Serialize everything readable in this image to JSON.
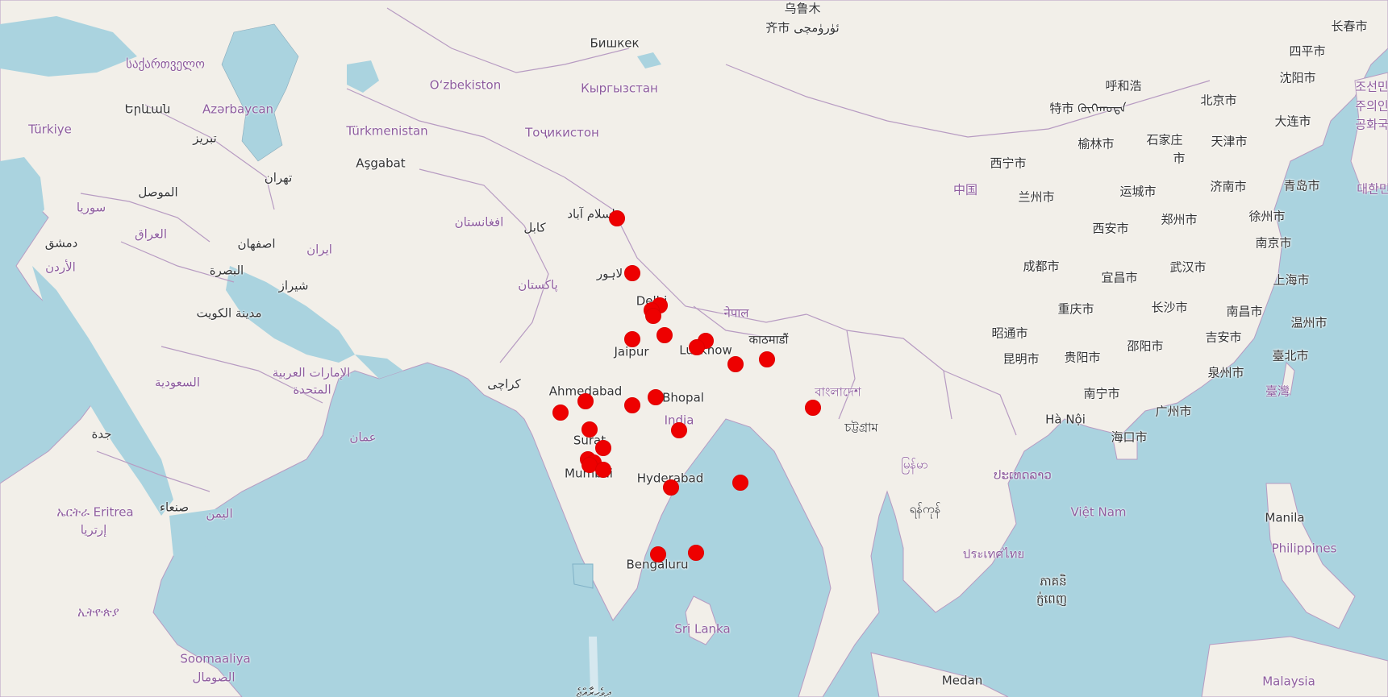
{
  "map": {
    "basemap": "OpenStreetMap",
    "colors": {
      "water": "#aad3df",
      "land": "#f2efe9",
      "border": "#b79bc2",
      "marker": "#ee0000",
      "country_label": "#8e5c9e"
    },
    "country_labels": [
      {
        "id": "georgia",
        "text": "საქართველო"
      },
      {
        "id": "azerbaijan",
        "text": "Azərbaycan"
      },
      {
        "id": "uzbekistan",
        "text": "O‘zbekiston"
      },
      {
        "id": "kyrgyzstan",
        "text": "Кыргызстан"
      },
      {
        "id": "turkmenistan",
        "text": "Türkmenistan"
      },
      {
        "id": "tajikistan",
        "text": "Тоҷикистон"
      },
      {
        "id": "turkey",
        "text": "Türkiye"
      },
      {
        "id": "syria",
        "text": "سوريا"
      },
      {
        "id": "iraq",
        "text": "العراق"
      },
      {
        "id": "iran",
        "text": "ایران"
      },
      {
        "id": "jordan",
        "text": "الأردن"
      },
      {
        "id": "afghanistan",
        "text": "افغانستان"
      },
      {
        "id": "pakistan",
        "text": "پاکستان"
      },
      {
        "id": "saudi",
        "text": "السعودية"
      },
      {
        "id": "uae1",
        "text": "الإمارات العربية"
      },
      {
        "id": "uae2",
        "text": "المتحدة"
      },
      {
        "id": "oman",
        "text": "عمان"
      },
      {
        "id": "yemen",
        "text": "اليمن"
      },
      {
        "id": "eritrea1",
        "text": "ኤርትራ Eritrea"
      },
      {
        "id": "eritrea2",
        "text": "إرتريا"
      },
      {
        "id": "ethiopia",
        "text": "ኢትዮጵያ"
      },
      {
        "id": "somalia1",
        "text": "Soomaaliya"
      },
      {
        "id": "somalia2",
        "text": "الصومال"
      },
      {
        "id": "china",
        "text": "中国"
      },
      {
        "id": "nepal",
        "text": "नेपाल"
      },
      {
        "id": "bangladesh",
        "text": "বাংলাদেশ"
      },
      {
        "id": "india",
        "text": "India"
      },
      {
        "id": "myanmar",
        "text": "မြန်မာ"
      },
      {
        "id": "laos",
        "text": "ປະເທດລາວ"
      },
      {
        "id": "thailand",
        "text": "ประเทศไทย"
      },
      {
        "id": "vietnam",
        "text": "Việt Nam"
      },
      {
        "id": "cambodia1",
        "text": "ភាគនិ"
      },
      {
        "id": "cambodia2",
        "text": "ក្ញ់ពេញ"
      },
      {
        "id": "srilanka",
        "text": "Sri Lanka"
      },
      {
        "id": "philippines",
        "text": "Philippines"
      },
      {
        "id": "malaysia",
        "text": "Malaysia"
      },
      {
        "id": "taiwan",
        "text": "臺灣"
      },
      {
        "id": "korea1",
        "text": "조선민"
      },
      {
        "id": "korea2",
        "text": "주의인"
      },
      {
        "id": "korea3",
        "text": "공화국"
      },
      {
        "id": "korea4",
        "text": "대한민"
      }
    ],
    "city_labels": [
      {
        "id": "urumqi1",
        "text": "乌鲁木"
      },
      {
        "id": "urumqi2",
        "text": "齐市 ئۈرۈمچى"
      },
      {
        "id": "bishkek",
        "text": "Бишкек"
      },
      {
        "id": "changchun",
        "text": "长春市"
      },
      {
        "id": "siping",
        "text": "四平市"
      },
      {
        "id": "shenyang",
        "text": "沈阳市"
      },
      {
        "id": "hohhot",
        "text": "呼和浩"
      },
      {
        "id": "hohhot2",
        "text": "特市 ᠬᠥᠬᠡᠬᠣᠲᠠ"
      },
      {
        "id": "beijing",
        "text": "北京市"
      },
      {
        "id": "dalian",
        "text": "大连市"
      },
      {
        "id": "yulin",
        "text": "榆林市"
      },
      {
        "id": "shijiazhuang1",
        "text": "石家庄"
      },
      {
        "id": "shijiazhuang2",
        "text": "市"
      },
      {
        "id": "tianjin",
        "text": "天津市"
      },
      {
        "id": "xining",
        "text": "西宁市"
      },
      {
        "id": "lanzhou",
        "text": "兰州市"
      },
      {
        "id": "yuncheng",
        "text": "运城市"
      },
      {
        "id": "jinan",
        "text": "济南市"
      },
      {
        "id": "qingdao",
        "text": "青岛市"
      },
      {
        "id": "xian",
        "text": "西安市"
      },
      {
        "id": "zhengzhou",
        "text": "郑州市"
      },
      {
        "id": "xuzhou",
        "text": "徐州市"
      },
      {
        "id": "nanjing",
        "text": "南京市"
      },
      {
        "id": "chengdu",
        "text": "成都市"
      },
      {
        "id": "yichang",
        "text": "宜昌市"
      },
      {
        "id": "wuhan",
        "text": "武汉市"
      },
      {
        "id": "shanghai",
        "text": "上海市"
      },
      {
        "id": "chongqing",
        "text": "重庆市"
      },
      {
        "id": "changsha",
        "text": "长沙市"
      },
      {
        "id": "nanchang",
        "text": "南昌市"
      },
      {
        "id": "wenzhou",
        "text": "温州市"
      },
      {
        "id": "zhaotong",
        "text": "昭通市"
      },
      {
        "id": "kunming",
        "text": "昆明市"
      },
      {
        "id": "guiyang",
        "text": "贵阳市"
      },
      {
        "id": "shaoyang",
        "text": "邵阳市"
      },
      {
        "id": "jian",
        "text": "吉安市"
      },
      {
        "id": "taipei",
        "text": "臺北市"
      },
      {
        "id": "quanzhou",
        "text": "泉州市"
      },
      {
        "id": "nanning",
        "text": "南宁市"
      },
      {
        "id": "guangzhou",
        "text": "广州市"
      },
      {
        "id": "hanoi",
        "text": "Hà Nội"
      },
      {
        "id": "haikou",
        "text": "海口市"
      },
      {
        "id": "manila",
        "text": "Manila"
      },
      {
        "id": "yerevan",
        "text": "Երևան"
      },
      {
        "id": "tabriz",
        "text": "تبریز"
      },
      {
        "id": "ashgabat",
        "text": "Aşgabat"
      },
      {
        "id": "tehran",
        "text": "تهران"
      },
      {
        "id": "mosul",
        "text": "الموصل"
      },
      {
        "id": "damascus",
        "text": "دمشق"
      },
      {
        "id": "isfahan",
        "text": "اصفهان"
      },
      {
        "id": "basra",
        "text": "البصرة"
      },
      {
        "id": "shiraz",
        "text": "شیراز"
      },
      {
        "id": "kuwait",
        "text": "مدينة الكويت"
      },
      {
        "id": "kabul",
        "text": "کابل"
      },
      {
        "id": "islamabad",
        "text": "اسلام آباد"
      },
      {
        "id": "lahore",
        "text": "لاہور"
      },
      {
        "id": "karachi",
        "text": "کراچی"
      },
      {
        "id": "jeddah",
        "text": "جدة"
      },
      {
        "id": "sanaa",
        "text": "صنعاء"
      },
      {
        "id": "delhi",
        "text": "Delhi"
      },
      {
        "id": "jaipur",
        "text": "Jaipur"
      },
      {
        "id": "lucknow",
        "text": "Lucknow"
      },
      {
        "id": "kathmandu",
        "text": "काठमाडौं"
      },
      {
        "id": "ahmedabad",
        "text": "Ahmedabad"
      },
      {
        "id": "bhopal",
        "text": "Bhopal"
      },
      {
        "id": "surat",
        "text": "Surat"
      },
      {
        "id": "mumbai",
        "text": "Mumbai"
      },
      {
        "id": "hyderabad",
        "text": "Hyderabad"
      },
      {
        "id": "bengaluru",
        "text": "Bengaluru"
      },
      {
        "id": "chittagong",
        "text": "চট্টগ্রাম"
      },
      {
        "id": "yangon",
        "text": "ရန်ကုန်"
      },
      {
        "id": "medan",
        "text": "Medan"
      },
      {
        "id": "maldives",
        "text": "ދިވެހިރާއްޖެ"
      }
    ],
    "markers_count": 30
  }
}
